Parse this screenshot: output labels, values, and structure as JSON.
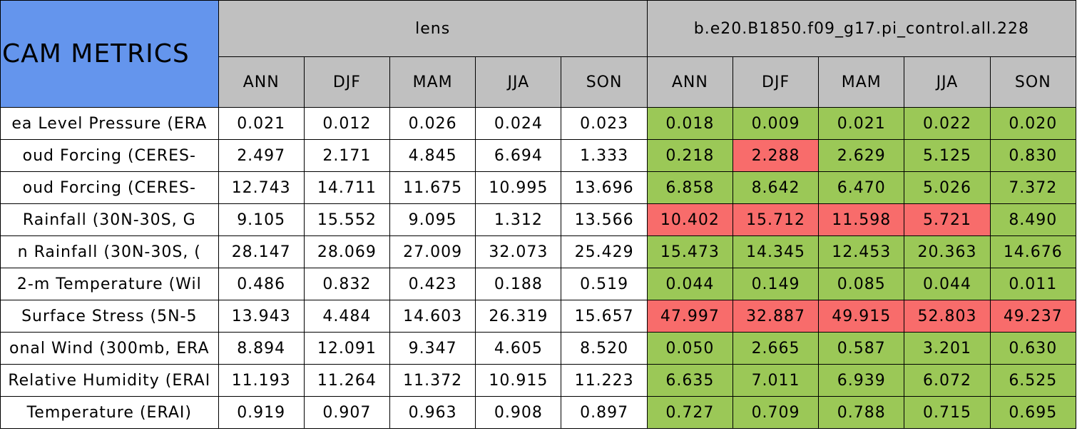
{
  "table": {
    "title": "CAM METRICS",
    "groups": [
      "lens",
      "b.e20.B1850.f09_g17.pi_control.all.228"
    ],
    "seasons": [
      "ANN",
      "DJF",
      "MAM",
      "JJA",
      "SON"
    ],
    "header_color": "#c0c0c0",
    "title_color": "#6495ed",
    "group_colors": [
      "#ffffff",
      null
    ],
    "rows": [
      {
        "label": "ea Level Pressure (ERA",
        "values": [
          "0.021",
          "0.012",
          "0.026",
          "0.024",
          "0.023",
          "0.018",
          "0.009",
          "0.021",
          "0.022",
          "0.020"
        ],
        "colors": [
          null,
          null,
          null,
          null,
          null,
          "#9bc857",
          "#9bc857",
          "#9bc857",
          "#9bc857",
          "#9bc857"
        ]
      },
      {
        "label": "oud Forcing (CERES-",
        "values": [
          "2.497",
          "2.171",
          "4.845",
          "6.694",
          "1.333",
          "0.218",
          "2.288",
          "2.629",
          "5.125",
          "0.830"
        ],
        "colors": [
          null,
          null,
          null,
          null,
          null,
          "#9bc857",
          "#f86c6b",
          "#9bc857",
          "#9bc857",
          "#9bc857"
        ]
      },
      {
        "label": "oud Forcing (CERES-",
        "values": [
          "12.743",
          "14.711",
          "11.675",
          "10.995",
          "13.696",
          "6.858",
          "8.642",
          "6.470",
          "5.026",
          "7.372"
        ],
        "colors": [
          null,
          null,
          null,
          null,
          null,
          "#9bc857",
          "#9bc857",
          "#9bc857",
          "#9bc857",
          "#9bc857"
        ]
      },
      {
        "label": "Rainfall (30N-30S, G",
        "values": [
          "9.105",
          "15.552",
          "9.095",
          "1.312",
          "13.566",
          "10.402",
          "15.712",
          "11.598",
          "5.721",
          "8.490"
        ],
        "colors": [
          null,
          null,
          null,
          null,
          null,
          "#f86c6b",
          "#f86c6b",
          "#f86c6b",
          "#f86c6b",
          "#9bc857"
        ]
      },
      {
        "label": "n Rainfall (30N-30S, (",
        "values": [
          "28.147",
          "28.069",
          "27.009",
          "32.073",
          "25.429",
          "15.473",
          "14.345",
          "12.453",
          "20.363",
          "14.676"
        ],
        "colors": [
          null,
          null,
          null,
          null,
          null,
          "#9bc857",
          "#9bc857",
          "#9bc857",
          "#9bc857",
          "#9bc857"
        ]
      },
      {
        "label": "2-m Temperature (Wil",
        "values": [
          "0.486",
          "0.832",
          "0.423",
          "0.188",
          "0.519",
          "0.044",
          "0.149",
          "0.085",
          "0.044",
          "0.011"
        ],
        "colors": [
          null,
          null,
          null,
          null,
          null,
          "#9bc857",
          "#9bc857",
          "#9bc857",
          "#9bc857",
          "#9bc857"
        ]
      },
      {
        "label": "Surface Stress (5N-5",
        "values": [
          "13.943",
          "4.484",
          "14.603",
          "26.319",
          "15.657",
          "47.997",
          "32.887",
          "49.915",
          "52.803",
          "49.237"
        ],
        "colors": [
          null,
          null,
          null,
          null,
          null,
          "#f86c6b",
          "#f86c6b",
          "#f86c6b",
          "#f86c6b",
          "#f86c6b"
        ]
      },
      {
        "label": "onal Wind (300mb, ERA",
        "values": [
          "8.894",
          "12.091",
          "9.347",
          "4.605",
          "8.520",
          "0.050",
          "2.665",
          "0.587",
          "3.201",
          "0.630"
        ],
        "colors": [
          null,
          null,
          null,
          null,
          null,
          "#9bc857",
          "#9bc857",
          "#9bc857",
          "#9bc857",
          "#9bc857"
        ]
      },
      {
        "label": "Relative Humidity (ERAI",
        "values": [
          "11.193",
          "11.264",
          "11.372",
          "10.915",
          "11.223",
          "6.635",
          "7.011",
          "6.939",
          "6.072",
          "6.525"
        ],
        "colors": [
          null,
          null,
          null,
          null,
          null,
          "#9bc857",
          "#9bc857",
          "#9bc857",
          "#9bc857",
          "#9bc857"
        ]
      },
      {
        "label": "Temperature (ERAI)",
        "values": [
          "0.919",
          "0.907",
          "0.963",
          "0.908",
          "0.897",
          "0.727",
          "0.709",
          "0.788",
          "0.715",
          "0.695"
        ],
        "colors": [
          null,
          null,
          null,
          null,
          null,
          "#9bc857",
          "#9bc857",
          "#9bc857",
          "#9bc857",
          "#9bc857"
        ]
      }
    ]
  }
}
